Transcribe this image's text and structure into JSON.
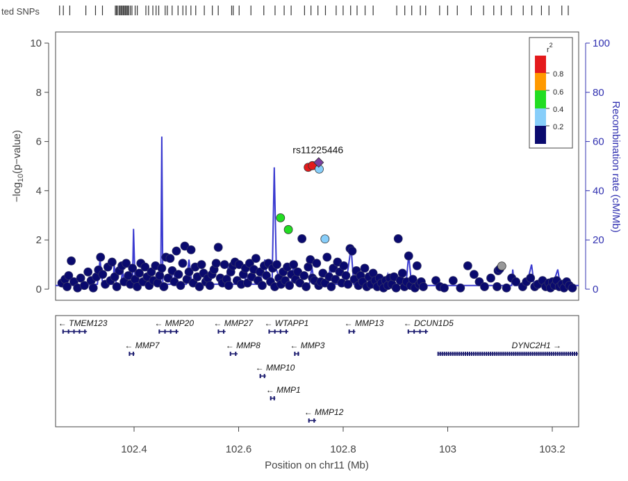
{
  "chart_data": {
    "type": "scatter",
    "annotated_snps_label": "ted SNPs",
    "xlabel": "Position on chr11 (Mb)",
    "ylabel": "-log10(p-value)",
    "ylabel_rendered": [
      "−log",
      "10",
      "(p−value)"
    ],
    "y2label": "Recombination rate (cM/Mb)",
    "xlim": [
      102.25,
      103.25
    ],
    "ylim": [
      0,
      10.4
    ],
    "y2lim": [
      0,
      104
    ],
    "x_ticks": [
      102.4,
      102.6,
      102.8,
      103,
      103.2
    ],
    "x_tick_labels": [
      "102.4",
      "102.6",
      "102.8",
      "103",
      "103.2"
    ],
    "y_ticks": [
      0,
      2,
      4,
      6,
      8,
      10
    ],
    "y_tick_labels": [
      "0",
      "2",
      "4",
      "6",
      "8",
      "10"
    ],
    "y2_ticks": [
      0,
      20,
      40,
      60,
      80,
      100
    ],
    "y2_tick_labels": [
      "0",
      "20",
      "40",
      "60",
      "80",
      "100"
    ],
    "legend": {
      "title": "r",
      "title_sup": "2",
      "position": "top-right",
      "breaks": [
        "0.8",
        "0.6",
        "0.4",
        "0.2"
      ],
      "colors": [
        "#e41a1c",
        "#ff9900",
        "#22dd22",
        "#87cefa",
        "#0a0a6e"
      ]
    },
    "colors": {
      "ld_0.8_1": "#e41a1c",
      "ld_0.6_0.8": "#ff9900",
      "ld_0.4_0.6": "#22dd22",
      "ld_0.2_0.4": "#87cefa",
      "ld_0_0.2": "#0a0a6e",
      "no_ld": "#999999",
      "lead": "#7b3fa0",
      "recombination_line": "#3a3ad0"
    },
    "lead_snp": {
      "label": "rs11225446",
      "x": 102.753,
      "y": 5.15
    },
    "highlight_points": [
      {
        "x": 102.733,
        "y": 4.95,
        "ld": "red"
      },
      {
        "x": 102.741,
        "y": 5.02,
        "ld": "red"
      },
      {
        "x": 102.754,
        "y": 4.88,
        "ld": "lightblue"
      },
      {
        "x": 102.68,
        "y": 2.9,
        "ld": "green"
      },
      {
        "x": 102.695,
        "y": 2.42,
        "ld": "green"
      },
      {
        "x": 102.765,
        "y": 2.04,
        "ld": "lightblue"
      },
      {
        "x": 103.103,
        "y": 0.94,
        "ld": "none"
      }
    ],
    "background_points": [
      [
        102.262,
        0.25
      ],
      [
        102.268,
        0.4
      ],
      [
        102.272,
        0.1
      ],
      [
        102.275,
        0.55
      ],
      [
        102.28,
        1.15
      ],
      [
        102.285,
        0.3
      ],
      [
        102.292,
        0.05
      ],
      [
        102.298,
        0.45
      ],
      [
        102.305,
        0.15
      ],
      [
        102.312,
        0.7
      ],
      [
        102.318,
        0.35
      ],
      [
        102.322,
        0.05
      ],
      [
        102.328,
        0.5
      ],
      [
        102.332,
        0.78
      ],
      [
        102.336,
        1.3
      ],
      [
        102.34,
        0.6
      ],
      [
        102.345,
        0.2
      ],
      [
        102.35,
        0.9
      ],
      [
        102.355,
        0.35
      ],
      [
        102.358,
        1.1
      ],
      [
        102.363,
        0.5
      ],
      [
        102.367,
        0.1
      ],
      [
        102.372,
        0.75
      ],
      [
        102.377,
        0.95
      ],
      [
        102.381,
        0.3
      ],
      [
        102.385,
        1.05
      ],
      [
        102.389,
        0.55
      ],
      [
        102.393,
        0.2
      ],
      [
        102.397,
        0.85
      ],
      [
        102.402,
        0.4
      ],
      [
        102.406,
        0.1
      ],
      [
        102.41,
        0.65
      ],
      [
        102.413,
        1.05
      ],
      [
        102.417,
        0.3
      ],
      [
        102.421,
        0.9
      ],
      [
        102.425,
        0.5
      ],
      [
        102.429,
        0.15
      ],
      [
        102.433,
        0.7
      ],
      [
        102.437,
        0.35
      ],
      [
        102.441,
        0.95
      ],
      [
        102.445,
        0.25
      ],
      [
        102.449,
        0.55
      ],
      [
        102.453,
        0.85
      ],
      [
        102.457,
        0.1
      ],
      [
        102.461,
        1.3
      ],
      [
        102.465,
        0.45
      ],
      [
        102.469,
        1.25
      ],
      [
        102.473,
        0.75
      ],
      [
        102.477,
        0.3
      ],
      [
        102.481,
        1.55
      ],
      [
        102.485,
        0.6
      ],
      [
        102.489,
        0.15
      ],
      [
        102.493,
        1.05
      ],
      [
        102.497,
        1.75
      ],
      [
        102.501,
        0.4
      ],
      [
        102.505,
        0.7
      ],
      [
        102.509,
        1.6
      ],
      [
        102.513,
        0.25
      ],
      [
        102.517,
        0.9
      ],
      [
        102.521,
        0.5
      ],
      [
        102.525,
        0.1
      ],
      [
        102.529,
        1.0
      ],
      [
        102.533,
        0.65
      ],
      [
        102.537,
        0.3
      ],
      [
        102.541,
        0.45
      ],
      [
        102.545,
        0.15
      ],
      [
        102.549,
        0.6
      ],
      [
        102.553,
        0.8
      ],
      [
        102.557,
        1.05
      ],
      [
        102.561,
        1.7
      ],
      [
        102.565,
        0.45
      ],
      [
        102.569,
        0.25
      ],
      [
        102.573,
        1.0
      ],
      [
        102.577,
        0.4
      ],
      [
        102.581,
        0.15
      ],
      [
        102.585,
        0.7
      ],
      [
        102.589,
        0.95
      ],
      [
        102.593,
        1.1
      ],
      [
        102.597,
        0.35
      ],
      [
        102.601,
        1.0
      ],
      [
        102.605,
        0.2
      ],
      [
        102.609,
        0.6
      ],
      [
        102.613,
        0.85
      ],
      [
        102.617,
        0.25
      ],
      [
        102.621,
        1.05
      ],
      [
        102.625,
        0.5
      ],
      [
        102.629,
        0.8
      ],
      [
        102.633,
        1.25
      ],
      [
        102.637,
        0.35
      ],
      [
        102.641,
        0.7
      ],
      [
        102.645,
        0.15
      ],
      [
        102.649,
        0.95
      ],
      [
        102.653,
        0.55
      ],
      [
        102.657,
        1.05
      ],
      [
        102.661,
        0.3
      ],
      [
        102.665,
        0.85
      ],
      [
        102.669,
        0.1
      ],
      [
        102.673,
        1.0
      ],
      [
        102.677,
        0.45
      ],
      [
        102.681,
        0.2
      ],
      [
        102.685,
        0.7
      ],
      [
        102.689,
        0.35
      ],
      [
        102.693,
        0.9
      ],
      [
        102.697,
        0.15
      ],
      [
        102.701,
        0.6
      ],
      [
        102.705,
        1.0
      ],
      [
        102.709,
        0.4
      ],
      [
        102.713,
        0.7
      ],
      [
        102.717,
        0.25
      ],
      [
        102.721,
        2.05
      ],
      [
        102.725,
        0.55
      ],
      [
        102.729,
        0.1
      ],
      [
        102.733,
        0.9
      ],
      [
        102.737,
        1.2
      ],
      [
        102.741,
        0.45
      ],
      [
        102.745,
        0.35
      ],
      [
        102.749,
        1.05
      ],
      [
        102.753,
        0.15
      ],
      [
        102.757,
        0.3
      ],
      [
        102.761,
        0.65
      ],
      [
        102.765,
        0.25
      ],
      [
        102.769,
        1.3
      ],
      [
        102.773,
        0.5
      ],
      [
        102.777,
        0.1
      ],
      [
        102.781,
        0.85
      ],
      [
        102.785,
        0.4
      ],
      [
        102.789,
        1.1
      ],
      [
        102.793,
        0.7
      ],
      [
        102.797,
        0.25
      ],
      [
        102.801,
        0.95
      ],
      [
        102.805,
        0.55
      ],
      [
        102.809,
        0.2
      ],
      [
        102.813,
        1.65
      ],
      [
        102.817,
        1.55
      ],
      [
        102.821,
        0.4
      ],
      [
        102.825,
        0.75
      ],
      [
        102.829,
        0.15
      ],
      [
        102.833,
        0.55
      ],
      [
        102.837,
        0.3
      ],
      [
        102.841,
        0.85
      ],
      [
        102.845,
        0.1
      ],
      [
        102.849,
        0.5
      ],
      [
        102.853,
        0.2
      ],
      [
        102.857,
        0.65
      ],
      [
        102.861,
        0.35
      ],
      [
        102.865,
        0.1
      ],
      [
        102.869,
        0.45
      ],
      [
        102.873,
        0.25
      ],
      [
        102.877,
        0.05
      ],
      [
        102.881,
        0.35
      ],
      [
        102.885,
        0.15
      ],
      [
        102.889,
        0.45
      ],
      [
        102.893,
        0.2
      ],
      [
        102.897,
        0.5
      ],
      [
        102.901,
        0.05
      ],
      [
        102.905,
        2.05
      ],
      [
        102.909,
        0.35
      ],
      [
        102.913,
        0.65
      ],
      [
        102.917,
        0.1
      ],
      [
        102.921,
        0.3
      ],
      [
        102.925,
        1.35
      ],
      [
        102.929,
        0.15
      ],
      [
        102.933,
        0.4
      ],
      [
        102.937,
        0.05
      ],
      [
        102.941,
        0.95
      ],
      [
        102.945,
        0.2
      ],
      [
        102.949,
        0.3
      ],
      [
        102.953,
        0.1
      ],
      [
        102.977,
        0.35
      ],
      [
        102.985,
        0.1
      ],
      [
        102.993,
        0.05
      ],
      [
        103.01,
        0.35
      ],
      [
        103.024,
        0.05
      ],
      [
        103.038,
        0.95
      ],
      [
        103.05,
        0.6
      ],
      [
        103.06,
        0.3
      ],
      [
        103.07,
        0.1
      ],
      [
        103.082,
        0.45
      ],
      [
        103.094,
        0.1
      ],
      [
        103.096,
        0.75
      ],
      [
        103.099,
        0.82
      ],
      [
        103.112,
        0.05
      ],
      [
        103.122,
        0.45
      ],
      [
        103.13,
        0.3
      ],
      [
        103.143,
        0.1
      ],
      [
        103.15,
        0.3
      ],
      [
        103.158,
        0.45
      ],
      [
        103.166,
        0.1
      ],
      [
        103.172,
        0.2
      ],
      [
        103.181,
        0.35
      ],
      [
        103.187,
        0.1
      ],
      [
        103.193,
        0.25
      ],
      [
        103.196,
        0.05
      ],
      [
        103.2,
        0.3
      ],
      [
        103.204,
        0.15
      ],
      [
        103.208,
        0.35
      ],
      [
        103.213,
        0.1
      ],
      [
        103.218,
        0.2
      ],
      [
        103.222,
        0.05
      ],
      [
        103.227,
        0.3
      ],
      [
        103.232,
        0.15
      ],
      [
        103.238,
        0.05
      ]
    ],
    "recombination_rate": [
      [
        102.25,
        1.5
      ],
      [
        102.3,
        1.6
      ],
      [
        102.33,
        2
      ],
      [
        102.335,
        12
      ],
      [
        102.34,
        2
      ],
      [
        102.36,
        2
      ],
      [
        102.362,
        10
      ],
      [
        102.366,
        2
      ],
      [
        102.375,
        2
      ],
      [
        102.378,
        8
      ],
      [
        102.381,
        2
      ],
      [
        102.397,
        2
      ],
      [
        102.399,
        24.5
      ],
      [
        102.402,
        2
      ],
      [
        102.405,
        2
      ],
      [
        102.42,
        5
      ],
      [
        102.425,
        2
      ],
      [
        102.451,
        2
      ],
      [
        102.453,
        62
      ],
      [
        102.455,
        2
      ],
      [
        102.47,
        2
      ],
      [
        102.475,
        8
      ],
      [
        102.48,
        2
      ],
      [
        102.5,
        2
      ],
      [
        102.505,
        12
      ],
      [
        102.51,
        3
      ],
      [
        102.53,
        2
      ],
      [
        102.54,
        6
      ],
      [
        102.545,
        2
      ],
      [
        102.575,
        2
      ],
      [
        102.58,
        9
      ],
      [
        102.585,
        2
      ],
      [
        102.61,
        2
      ],
      [
        102.615,
        6
      ],
      [
        102.62,
        2
      ],
      [
        102.64,
        2
      ],
      [
        102.65,
        12
      ],
      [
        102.655,
        3
      ],
      [
        102.664,
        3
      ],
      [
        102.668,
        49.5
      ],
      [
        102.672,
        8
      ],
      [
        102.68,
        3
      ],
      [
        102.7,
        2
      ],
      [
        102.705,
        10
      ],
      [
        102.71,
        2
      ],
      [
        102.735,
        2
      ],
      [
        102.74,
        9
      ],
      [
        102.745,
        2
      ],
      [
        102.77,
        2
      ],
      [
        102.775,
        9
      ],
      [
        102.78,
        2
      ],
      [
        102.805,
        2
      ],
      [
        102.815,
        17
      ],
      [
        102.82,
        2
      ],
      [
        102.84,
        2
      ],
      [
        102.845,
        6
      ],
      [
        102.85,
        2
      ],
      [
        102.88,
        2
      ],
      [
        102.885,
        6
      ],
      [
        102.89,
        2
      ],
      [
        102.92,
        2
      ],
      [
        102.925,
        14
      ],
      [
        102.93,
        3
      ],
      [
        102.96,
        1.5
      ],
      [
        102.98,
        1.5
      ],
      [
        103.05,
        1.5
      ],
      [
        103.1,
        1.5
      ],
      [
        103.122,
        1.5
      ],
      [
        103.124,
        8
      ],
      [
        103.127,
        1.5
      ],
      [
        103.15,
        1.5
      ],
      [
        103.16,
        10
      ],
      [
        103.165,
        1.5
      ],
      [
        103.2,
        1.5
      ],
      [
        103.21,
        8
      ],
      [
        103.215,
        1.5
      ],
      [
        103.24,
        1.5
      ],
      [
        103.25,
        1.5
      ]
    ],
    "genes": [
      {
        "name": "TMEM123",
        "start": 102.263,
        "end": 102.31,
        "strand": "-",
        "row": 0
      },
      {
        "name": "MMP20",
        "start": 102.447,
        "end": 102.485,
        "strand": "-",
        "row": 0
      },
      {
        "name": "MMP27",
        "start": 102.56,
        "end": 102.575,
        "strand": "-",
        "row": 0
      },
      {
        "name": "WTAPP1",
        "start": 102.657,
        "end": 102.695,
        "strand": "-",
        "row": 0
      },
      {
        "name": "MMP13",
        "start": 102.81,
        "end": 102.823,
        "strand": "-",
        "row": 0
      },
      {
        "name": "DCUN1D5",
        "start": 102.923,
        "end": 102.962,
        "strand": "-",
        "row": 0
      },
      {
        "name": "MMP7",
        "start": 102.39,
        "end": 102.401,
        "strand": "-",
        "row": 1
      },
      {
        "name": "MMP8",
        "start": 102.583,
        "end": 102.598,
        "strand": "-",
        "row": 1
      },
      {
        "name": "MMP3",
        "start": 102.706,
        "end": 102.716,
        "strand": "-",
        "row": 1
      },
      {
        "name": "DYNC2H1",
        "start": 102.98,
        "end": 103.25,
        "strand": "+",
        "row": 1
      },
      {
        "name": "MMP10",
        "start": 102.64,
        "end": 102.652,
        "strand": "-",
        "row": 2
      },
      {
        "name": "MMP1",
        "start": 102.66,
        "end": 102.67,
        "strand": "-",
        "row": 3
      },
      {
        "name": "MMP12",
        "start": 102.733,
        "end": 102.748,
        "strand": "-",
        "row": 4
      }
    ],
    "annotated_snp_positions": [
      102.251,
      102.258,
      102.27,
      102.3,
      102.318,
      102.331,
      102.355,
      102.357,
      102.359,
      102.362,
      102.364,
      102.366,
      102.368,
      102.37,
      102.372,
      102.374,
      102.376,
      102.378,
      102.38,
      102.383,
      102.386,
      102.392,
      102.396,
      102.412,
      102.417,
      102.425,
      102.431,
      102.436,
      102.448,
      102.452,
      102.461,
      102.472,
      102.481,
      102.487,
      102.496,
      102.505,
      102.521,
      102.536,
      102.547,
      102.572,
      102.575,
      102.586,
      102.608,
      102.632,
      102.653,
      102.67,
      102.683,
      102.708,
      102.72,
      102.733,
      102.747,
      102.767,
      102.78,
      102.794,
      102.806,
      102.821,
      102.836,
      102.88,
      102.895,
      102.908,
      102.924,
      102.934,
      102.96,
      102.975,
      102.993,
      103.019,
      103.042,
      103.061,
      103.075,
      103.094,
      103.116,
      103.132,
      103.15,
      103.164,
      103.188,
      103.2
    ]
  }
}
